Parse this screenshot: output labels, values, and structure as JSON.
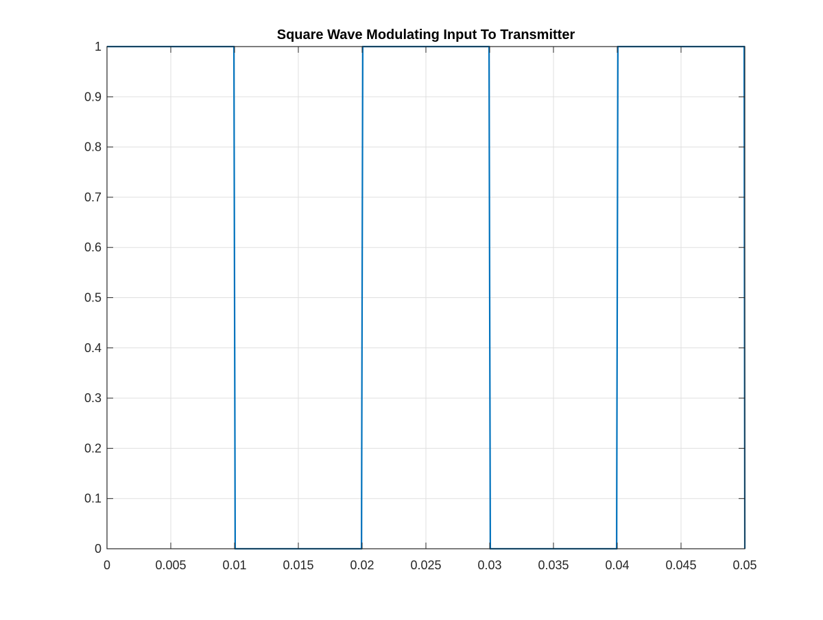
{
  "chart_data": {
    "type": "line",
    "title": "Square Wave Modulating Input To Transmitter",
    "xlabel": "",
    "ylabel": "",
    "xlim": [
      0,
      0.05
    ],
    "ylim": [
      0,
      1
    ],
    "grid": true,
    "legend": "none",
    "x_ticks": [
      "0",
      "0.005",
      "0.01",
      "0.015",
      "0.02",
      "0.025",
      "0.03",
      "0.035",
      "0.04",
      "0.045",
      "0.05"
    ],
    "y_ticks": [
      "0",
      "0.1",
      "0.2",
      "0.3",
      "0.4",
      "0.5",
      "0.6",
      "0.7",
      "0.8",
      "0.9",
      "1"
    ],
    "series": [
      {
        "color": "#0072BD",
        "x": [
          0,
          0.00995,
          0.01005,
          0.01995,
          0.02005,
          0.02995,
          0.03005,
          0.03995,
          0.04005,
          0.04995,
          0.05
        ],
        "y": [
          1,
          1,
          0,
          0,
          1,
          1,
          0,
          0,
          1,
          1,
          0
        ]
      }
    ]
  },
  "colors": {
    "axis": "#262626",
    "grid": "#dfdfdf",
    "background": "#ffffff"
  }
}
